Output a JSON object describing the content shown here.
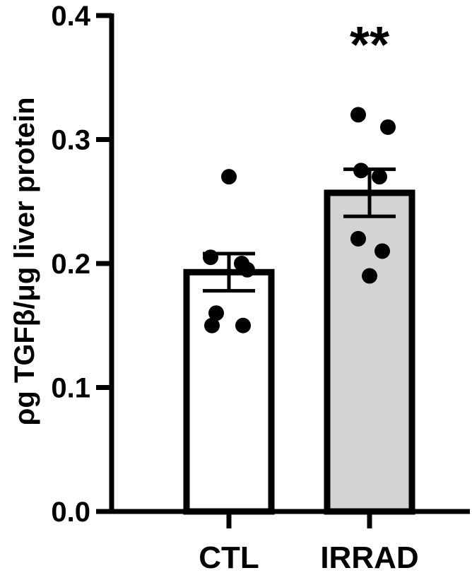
{
  "chart_data": {
    "type": "bar",
    "ylabel": "ρg TGFβ/μg liver protein",
    "xlabel": "",
    "ylim": [
      0,
      0.4
    ],
    "yticks": [
      0.0,
      0.1,
      0.2,
      0.3,
      0.4
    ],
    "ytick_labels": [
      "0.0",
      "0.1",
      "0.2",
      "0.3",
      "0.4"
    ],
    "categories": [
      "CTL",
      "IRRAD"
    ],
    "values": [
      0.193,
      0.257
    ],
    "sem": [
      0.015,
      0.019
    ],
    "bar_fill": [
      "#ffffff",
      "#d3d3d3"
    ],
    "points": [
      [
        0.27,
        0.205,
        0.2,
        0.195,
        0.16,
        0.15,
        0.15
      ],
      [
        0.32,
        0.31,
        0.275,
        0.27,
        0.22,
        0.21,
        0.19
      ]
    ],
    "annotations": [
      {
        "category": "IRRAD",
        "text": "**"
      }
    ],
    "grid": false
  }
}
